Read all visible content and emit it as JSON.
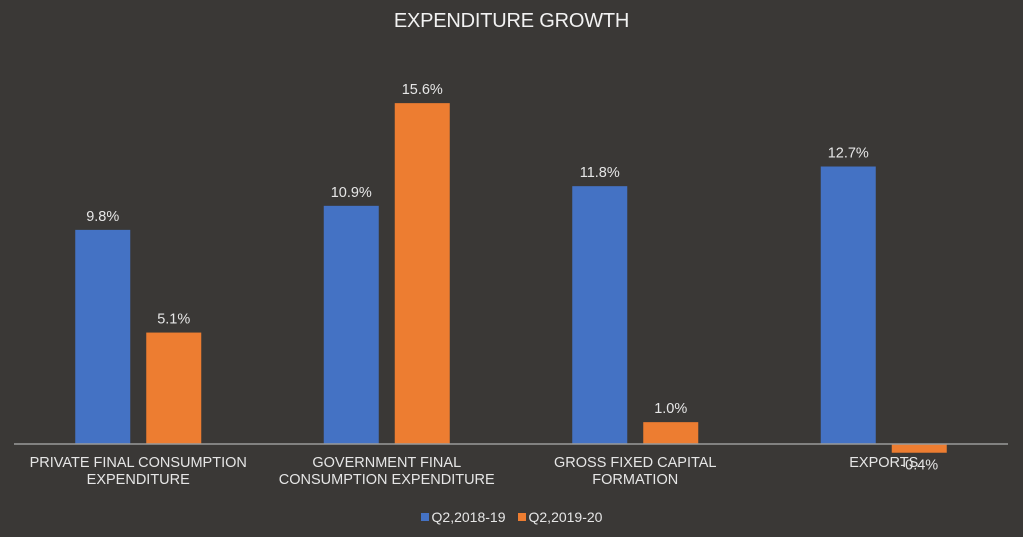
{
  "chart_data": {
    "type": "bar",
    "title": "EXPENDITURE GROWTH",
    "xlabel": "",
    "ylabel": "",
    "categories": [
      [
        "PRIVATE FINAL CONSUMPTION",
        "EXPENDITURE"
      ],
      [
        "GOVERNMENT FINAL",
        "CONSUMPTION EXPENDITURE"
      ],
      [
        "GROSS FIXED CAPITAL",
        "FORMATION"
      ],
      [
        "EXPORTS"
      ]
    ],
    "series": [
      {
        "name": "Q2,2018-19",
        "color": "#4472c4",
        "values": [
          9.8,
          10.9,
          11.8,
          12.7
        ],
        "labels": [
          "9.8%",
          "10.9%",
          "11.8%",
          "12.7%"
        ]
      },
      {
        "name": "Q2,2019-20",
        "color": "#ed7d31",
        "values": [
          5.1,
          15.6,
          1.0,
          -0.4
        ],
        "labels": [
          "5.1%",
          "15.6%",
          "1.0%",
          "-0.4%"
        ]
      }
    ],
    "ylim": [
      -1,
      16
    ],
    "grid": false,
    "legend_position": "bottom",
    "data_labels": true
  }
}
